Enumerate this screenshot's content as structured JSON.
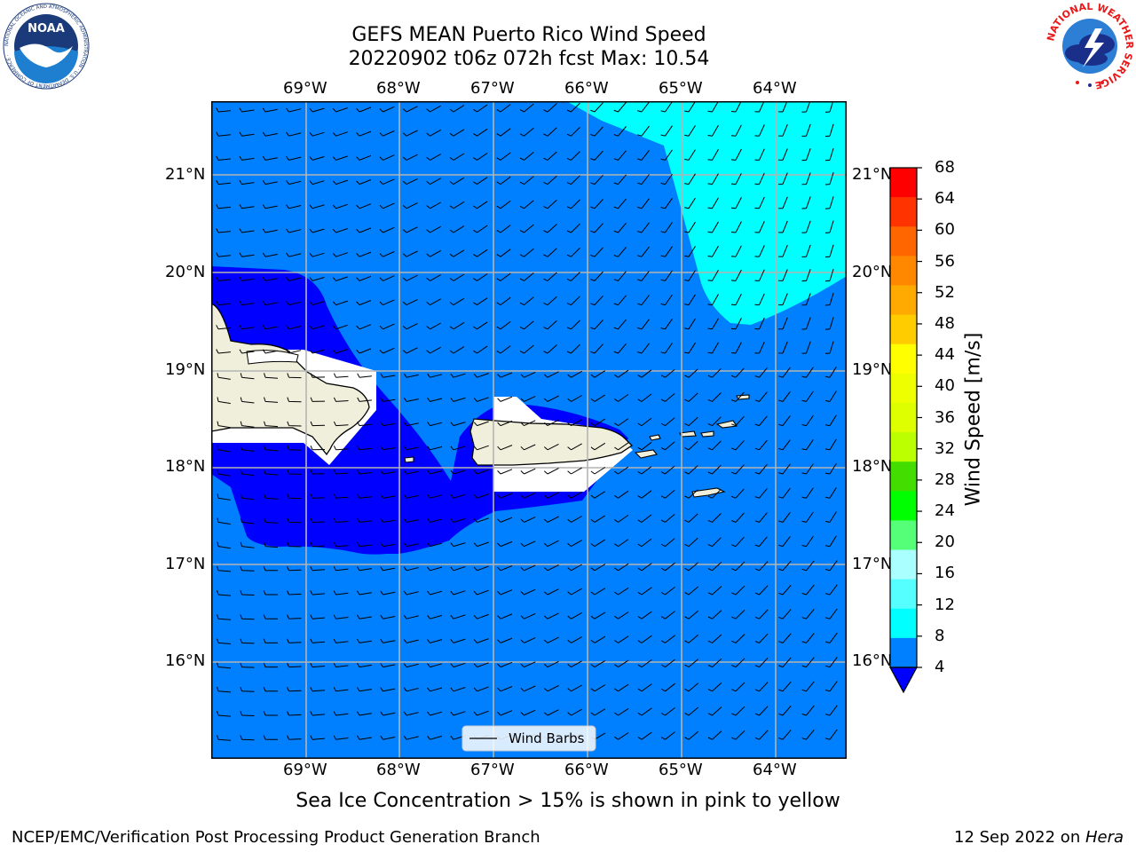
{
  "header": {
    "title_line1": "GEFS MEAN Puerto Rico Wind Speed",
    "title_line2": "20220902 t06z 072h fcst   Max: 10.54"
  },
  "logos": {
    "noaa_text": "NOAA",
    "noaa_ring_text": "NATIONAL OCEANIC AND ATMOSPHERIC ADMINISTRATION · U.S. DEPARTMENT OF COMMERCE ·",
    "nws_ring_text": "NATIONAL WEATHER SERVICE"
  },
  "map": {
    "lon_labels": [
      "69°W",
      "68°W",
      "67°W",
      "66°W",
      "65°W",
      "64°W"
    ],
    "lat_labels": [
      "21°N",
      "20°N",
      "19°N",
      "18°N",
      "17°N",
      "16°N"
    ],
    "legend_label": "Wind Barbs",
    "colors": {
      "ocean": "#0080ff",
      "near_coast": "#0000ff",
      "high_wind": "#00ffff",
      "land": "#efefdc",
      "masked": "#ffffff",
      "grid": "#b4b4b4"
    },
    "shaded_field": "wind speed",
    "barb_direction": "easterly trade winds, approx 5-10 m/s"
  },
  "colorbar": {
    "label": "Wind Speed [m/s]",
    "ticks": [
      "68",
      "64",
      "60",
      "56",
      "52",
      "48",
      "44",
      "40",
      "36",
      "32",
      "28",
      "24",
      "20",
      "16",
      "12",
      "8",
      "4"
    ],
    "bands_top_to_bottom": [
      "#ff0000",
      "#ff3300",
      "#ff6600",
      "#ff8800",
      "#ffaa00",
      "#ffcc00",
      "#ffff00",
      "#eeff00",
      "#ddff00",
      "#bbff00",
      "#44dd00",
      "#00ff00",
      "#55ff77",
      "#aaffff",
      "#55ffff",
      "#00ffff",
      "#0080ff"
    ],
    "extend_color": "#0000ff"
  },
  "caption": "Sea Ice Concentration > 15% is shown in pink to yellow",
  "footer": {
    "left": "NCEP/EMC/Verification Post Processing Product Generation Branch",
    "right_prefix": "12 Sep 2022 on ",
    "right_machine": "Hera"
  }
}
